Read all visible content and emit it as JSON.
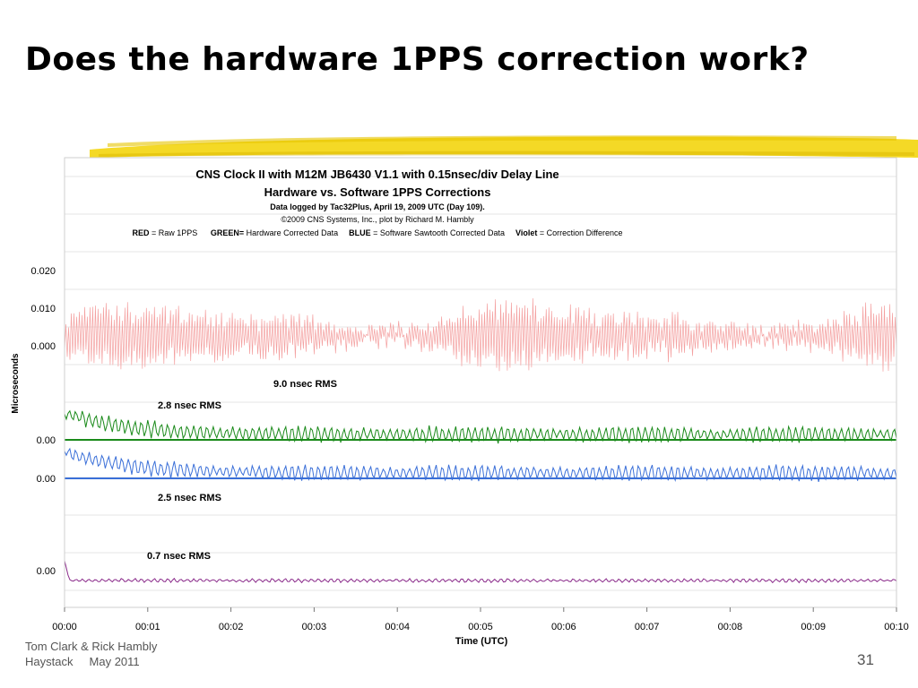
{
  "slide": {
    "title": "Does the hardware 1PPS correction work?",
    "footer_authors": "Tom Clark & Rick Hambly",
    "footer_place": "Haystack     May 2011",
    "number": "31",
    "accent_color": "#f2d200"
  },
  "chart_data": {
    "type": "line",
    "title": "CNS Clock II with M12M JB6430 V1.1 with 0.15nsec/div Delay Line",
    "subtitle": "Hardware vs. Software 1PPS Corrections",
    "note1": "Data logged by Tac32Plus, April 19, 2009 UTC (Day 109).",
    "note2": "©2009 CNS Systems, Inc., plot by Richard M. Hambly",
    "legend": [
      {
        "key": "RED",
        "sep": " = ",
        "text": "Raw 1PPS",
        "color": "#e03030"
      },
      {
        "key": "GREEN=",
        "sep": " ",
        "text": "Hardware Corrected Data",
        "color": "#1a8a1a"
      },
      {
        "key": "BLUE",
        "sep": " = ",
        "text": "Software Sawtooth Corrected Data",
        "color": "#3a6fd8"
      },
      {
        "key": "Violet",
        "sep": " = ",
        "text": "Correction Difference",
        "color": "#8a2a8a"
      }
    ],
    "xlabel": "Time (UTC)",
    "ylabel": "Microseconds",
    "x_ticks": [
      "00:00",
      "00:01",
      "00:02",
      "00:03",
      "00:04",
      "00:05",
      "00:06",
      "00:07",
      "00:08",
      "00:09",
      "00:10"
    ],
    "x_range_minutes": [
      0,
      10
    ],
    "grid": true,
    "series": [
      {
        "name": "RED",
        "axis_labels": [
          "0.020",
          "0.010",
          "0.000"
        ],
        "axis_values": [
          0.02,
          0.01,
          0.0
        ],
        "rms_label": "9.0 nsec RMS",
        "color": "#f4a0a0",
        "baseline": null
      },
      {
        "name": "GREEN",
        "axis_labels": [
          "0.00"
        ],
        "axis_values": [
          0.0
        ],
        "rms_label": "2.8 nsec RMS",
        "color": "#1a8a1a",
        "baseline": "#1a8a1a"
      },
      {
        "name": "BLUE",
        "axis_labels": [
          "0.00"
        ],
        "axis_values": [
          0.0
        ],
        "rms_label": "2.5 nsec RMS",
        "color": "#3a6fd8",
        "baseline": "#3a6fd8"
      },
      {
        "name": "Violet",
        "axis_labels": [
          "0.00"
        ],
        "axis_values": [
          0.0
        ],
        "rms_label": "0.7 nsec RMS",
        "color": "#8a2a8a",
        "baseline": null
      }
    ]
  }
}
